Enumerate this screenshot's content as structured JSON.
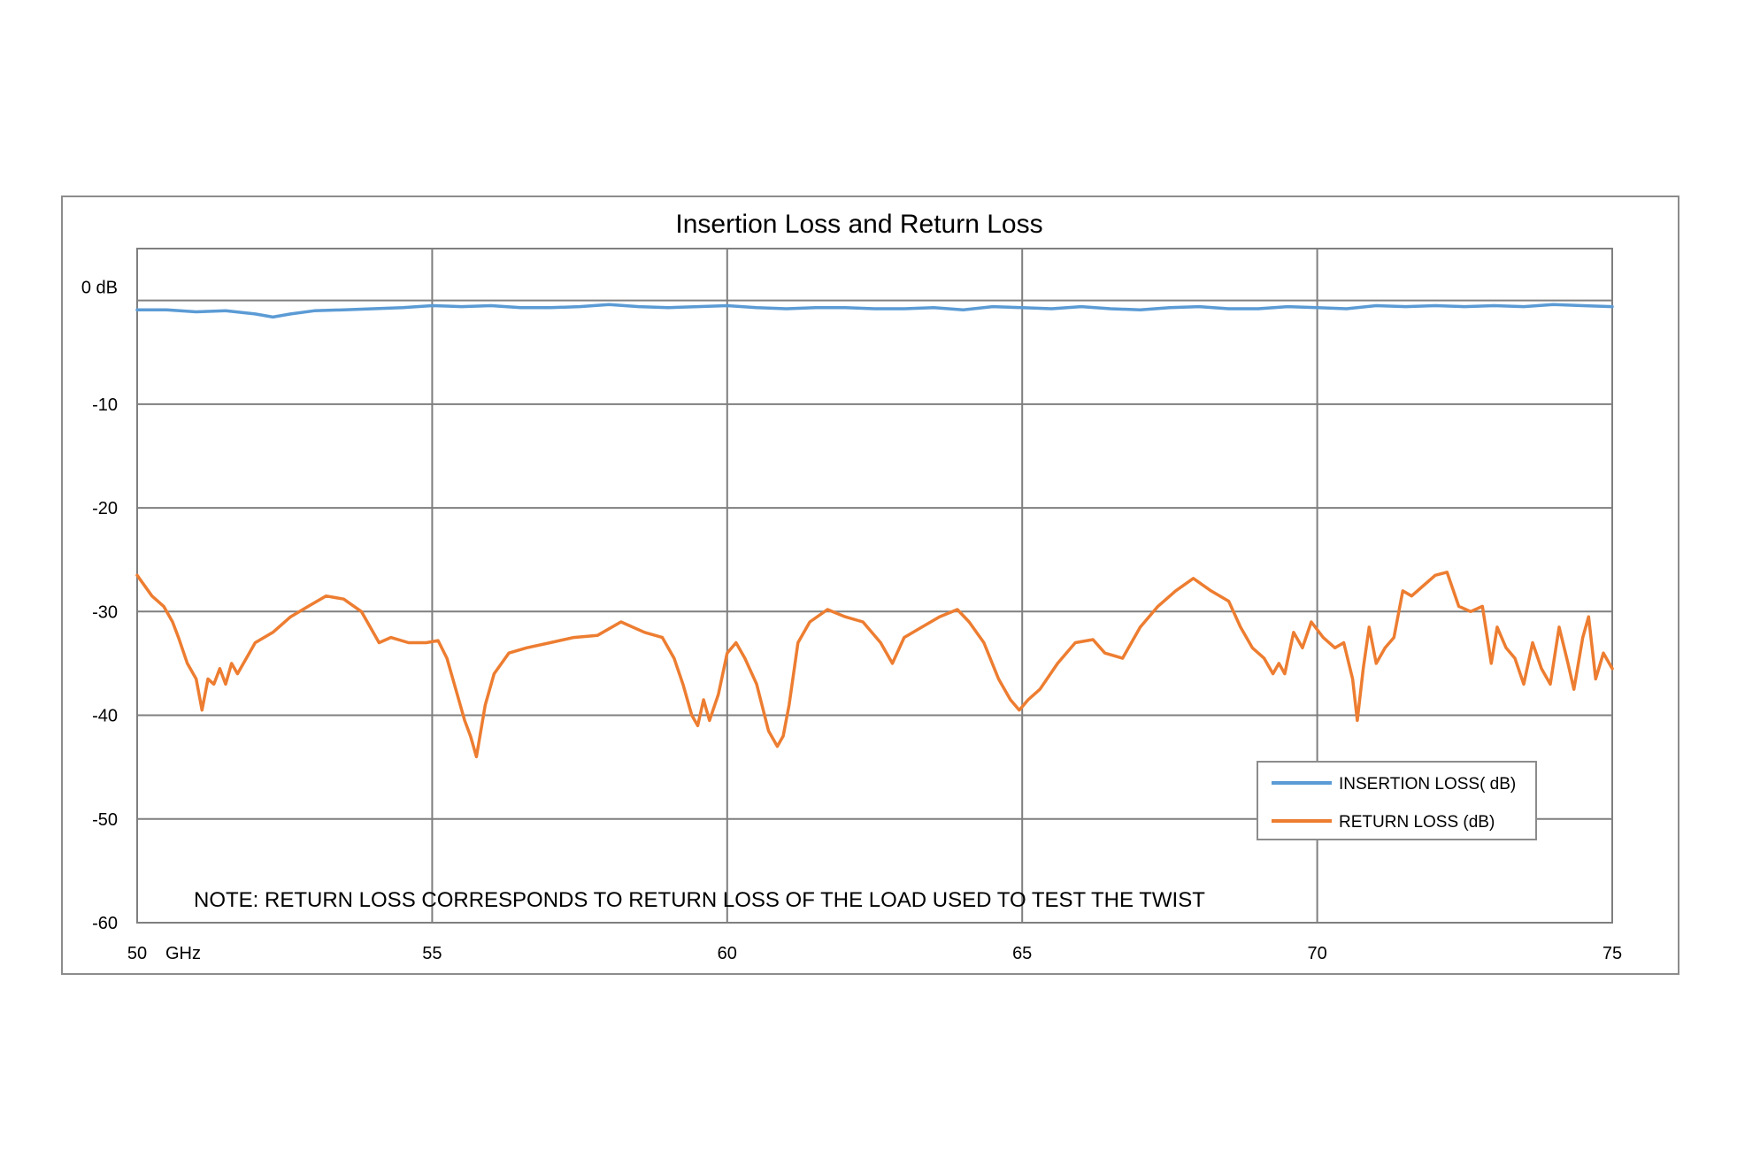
{
  "chart_data": {
    "type": "line",
    "title": "Insertion Loss and Return Loss",
    "xlabel": "GHz",
    "ylabel": "",
    "xlim": [
      50,
      75
    ],
    "ylim": [
      -60,
      5
    ],
    "x_ticks": [
      {
        "value": 50,
        "label": "50"
      },
      {
        "value": 55,
        "label": "55"
      },
      {
        "value": 60,
        "label": "60"
      },
      {
        "value": 65,
        "label": "65"
      },
      {
        "value": 70,
        "label": "70"
      },
      {
        "value": 75,
        "label": "75"
      }
    ],
    "y_ticks": [
      {
        "value": 0,
        "label": "0 dB"
      },
      {
        "value": -10,
        "label": "-10"
      },
      {
        "value": -20,
        "label": "-20"
      },
      {
        "value": -30,
        "label": "-30"
      },
      {
        "value": -40,
        "label": "-40"
      },
      {
        "value": -50,
        "label": "-50"
      },
      {
        "value": -60,
        "label": "-60"
      }
    ],
    "grid": true,
    "legend_position": "bottom-right",
    "annotation": "NOTE:  RETURN LOSS CORRESPONDS TO RETURN LOSS OF THE LOAD USED TO TEST THE TWIST",
    "series": [
      {
        "name": "INSERTION LOSS( dB)",
        "color": "#5b9bd5",
        "x": [
          50,
          50.5,
          51,
          51.5,
          52,
          52.3,
          52.6,
          53,
          53.5,
          54,
          54.5,
          55,
          55.5,
          56,
          56.5,
          57,
          57.5,
          58,
          58.5,
          59,
          59.5,
          60,
          60.5,
          61,
          61.5,
          62,
          62.5,
          63,
          63.5,
          64,
          64.5,
          65,
          65.5,
          66,
          66.5,
          67,
          67.5,
          68,
          68.5,
          69,
          69.5,
          70,
          70.5,
          71,
          71.5,
          72,
          72.5,
          73,
          73.5,
          74,
          74.5,
          75
        ],
        "y": [
          -0.9,
          -0.9,
          -1.1,
          -1.0,
          -1.3,
          -1.6,
          -1.3,
          -1.0,
          -0.9,
          -0.8,
          -0.7,
          -0.5,
          -0.6,
          -0.5,
          -0.7,
          -0.7,
          -0.6,
          -0.4,
          -0.6,
          -0.7,
          -0.6,
          -0.5,
          -0.7,
          -0.8,
          -0.7,
          -0.7,
          -0.8,
          -0.8,
          -0.7,
          -0.9,
          -0.6,
          -0.7,
          -0.8,
          -0.6,
          -0.8,
          -0.9,
          -0.7,
          -0.6,
          -0.8,
          -0.8,
          -0.6,
          -0.7,
          -0.8,
          -0.5,
          -0.6,
          -0.5,
          -0.6,
          -0.5,
          -0.6,
          -0.4,
          -0.5,
          -0.6
        ]
      },
      {
        "name": "RETURN LOSS (dB)",
        "color": "#ed7d31",
        "x": [
          50,
          50.25,
          50.45,
          50.6,
          50.7,
          50.85,
          51.0,
          51.1,
          51.2,
          51.3,
          51.4,
          51.5,
          51.6,
          51.7,
          51.85,
          52.0,
          52.3,
          52.6,
          52.9,
          53.2,
          53.5,
          53.8,
          54.1,
          54.3,
          54.6,
          54.9,
          55.1,
          55.25,
          55.4,
          55.55,
          55.65,
          55.75,
          55.9,
          56.05,
          56.3,
          56.6,
          57.0,
          57.4,
          57.8,
          58.2,
          58.6,
          58.9,
          59.1,
          59.25,
          59.4,
          59.5,
          59.6,
          59.7,
          59.85,
          60.0,
          60.15,
          60.3,
          60.5,
          60.7,
          60.85,
          60.95,
          61.05,
          61.2,
          61.4,
          61.7,
          62.0,
          62.3,
          62.6,
          62.8,
          63.0,
          63.3,
          63.6,
          63.9,
          64.1,
          64.35,
          64.6,
          64.8,
          64.95,
          65.1,
          65.3,
          65.6,
          65.9,
          66.2,
          66.4,
          66.7,
          67.0,
          67.3,
          67.6,
          67.9,
          68.2,
          68.5,
          68.7,
          68.9,
          69.1,
          69.25,
          69.35,
          69.45,
          69.6,
          69.75,
          69.9,
          70.1,
          70.3,
          70.45,
          70.6,
          70.68,
          70.78,
          70.88,
          71.0,
          71.15,
          71.3,
          71.45,
          71.6,
          71.8,
          72.0,
          72.2,
          72.4,
          72.6,
          72.8,
          72.95,
          73.05,
          73.2,
          73.35,
          73.5,
          73.65,
          73.8,
          73.95,
          74.1,
          74.25,
          74.35,
          74.5,
          74.6,
          74.72,
          74.85,
          75.0
        ],
        "y": [
          -26.5,
          -28.5,
          -29.5,
          -31,
          -32.5,
          -35,
          -36.5,
          -39.5,
          -36.5,
          -37,
          -35.5,
          -37,
          -35,
          -36,
          -34.5,
          -33,
          -32,
          -30.5,
          -29.5,
          -28.5,
          -28.8,
          -30,
          -33,
          -32.5,
          -33,
          -33,
          -32.8,
          -34.5,
          -37.5,
          -40.5,
          -42,
          -44,
          -39,
          -36,
          -34,
          -33.5,
          -33,
          -32.5,
          -32.3,
          -31,
          -32,
          -32.5,
          -34.5,
          -37,
          -40,
          -41,
          -38.5,
          -40.5,
          -38,
          -34,
          -33,
          -34.5,
          -37,
          -41.5,
          -43,
          -42,
          -39,
          -33,
          -31,
          -29.8,
          -30.5,
          -31,
          -33,
          -35,
          -32.5,
          -31.5,
          -30.5,
          -29.8,
          -31,
          -33,
          -36.5,
          -38.5,
          -39.5,
          -38.5,
          -37.5,
          -35,
          -33,
          -32.7,
          -34,
          -34.5,
          -31.5,
          -29.5,
          -28,
          -26.8,
          -28,
          -29,
          -31.5,
          -33.5,
          -34.5,
          -36,
          -35,
          -36,
          -32,
          -33.5,
          -31,
          -32.5,
          -33.5,
          -33,
          -36.5,
          -40.5,
          -35.5,
          -31.5,
          -35,
          -33.5,
          -32.5,
          -28,
          -28.5,
          -27.5,
          -26.5,
          -26.2,
          -29.5,
          -30,
          -29.5,
          -35,
          -31.5,
          -33.5,
          -34.5,
          -37,
          -33,
          -35.5,
          -37,
          -31.5,
          -35,
          -37.5,
          -32.5,
          -30.5,
          -36.5,
          -34,
          -35.5
        ]
      }
    ]
  }
}
